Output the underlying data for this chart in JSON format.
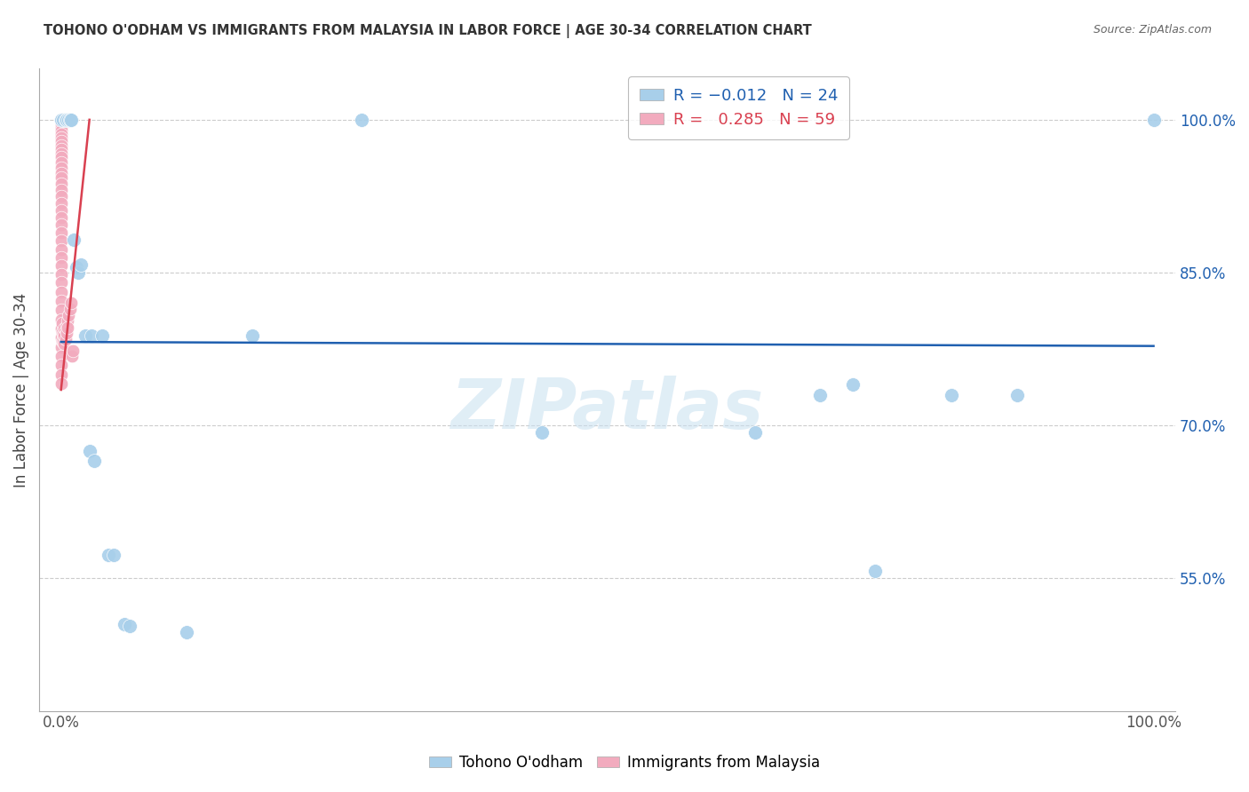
{
  "title": "TOHONO O'ODHAM VS IMMIGRANTS FROM MALAYSIA IN LABOR FORCE | AGE 30-34 CORRELATION CHART",
  "source": "Source: ZipAtlas.com",
  "ylabel": "In Labor Force | Age 30-34",
  "xlim": [
    -0.02,
    1.02
  ],
  "ylim": [
    0.42,
    1.05
  ],
  "yticks": [
    0.55,
    0.7,
    0.85,
    1.0
  ],
  "ytick_labels": [
    "55.0%",
    "70.0%",
    "85.0%",
    "100.0%"
  ],
  "blue_color": "#A8CFEA",
  "pink_color": "#F2ABBE",
  "trend_blue_color": "#2060B0",
  "trend_pink_color": "#D94050",
  "blue_trend_y_start": 0.782,
  "blue_trend_y_end": 0.778,
  "pink_trend_x_start": 0.0,
  "pink_trend_y_start": 0.735,
  "pink_trend_x_end": 0.026,
  "pink_trend_y_end": 1.0,
  "watermark": "ZIPatlas",
  "blue_points": [
    [
      0.0,
      1.0
    ],
    [
      0.002,
      1.0
    ],
    [
      0.004,
      1.0
    ],
    [
      0.005,
      1.0
    ],
    [
      0.007,
      1.0
    ],
    [
      0.008,
      1.0
    ],
    [
      0.009,
      1.0
    ],
    [
      0.012,
      0.882
    ],
    [
      0.014,
      0.855
    ],
    [
      0.016,
      0.85
    ],
    [
      0.018,
      0.858
    ],
    [
      0.022,
      0.788
    ],
    [
      0.028,
      0.788
    ],
    [
      0.026,
      0.675
    ],
    [
      0.03,
      0.665
    ],
    [
      0.038,
      0.788
    ],
    [
      0.043,
      0.573
    ],
    [
      0.048,
      0.573
    ],
    [
      0.058,
      0.505
    ],
    [
      0.063,
      0.503
    ],
    [
      0.115,
      0.497
    ],
    [
      0.175,
      0.788
    ],
    [
      0.275,
      1.0
    ],
    [
      0.44,
      0.693
    ],
    [
      0.635,
      0.693
    ],
    [
      0.695,
      0.73
    ],
    [
      0.725,
      0.74
    ],
    [
      0.745,
      0.557
    ],
    [
      0.815,
      0.73
    ],
    [
      0.875,
      0.73
    ],
    [
      1.0,
      1.0
    ]
  ],
  "pink_points": [
    [
      0.0,
      1.0
    ],
    [
      0.0,
      0.998
    ],
    [
      0.0,
      0.995
    ],
    [
      0.0,
      0.992
    ],
    [
      0.0,
      0.989
    ],
    [
      0.0,
      0.986
    ],
    [
      0.0,
      0.982
    ],
    [
      0.0,
      0.979
    ],
    [
      0.0,
      0.975
    ],
    [
      0.0,
      0.971
    ],
    [
      0.0,
      0.967
    ],
    [
      0.0,
      0.963
    ],
    [
      0.0,
      0.958
    ],
    [
      0.0,
      0.953
    ],
    [
      0.0,
      0.948
    ],
    [
      0.0,
      0.943
    ],
    [
      0.0,
      0.937
    ],
    [
      0.0,
      0.931
    ],
    [
      0.0,
      0.925
    ],
    [
      0.0,
      0.918
    ],
    [
      0.0,
      0.911
    ],
    [
      0.0,
      0.904
    ],
    [
      0.0,
      0.897
    ],
    [
      0.0,
      0.889
    ],
    [
      0.0,
      0.881
    ],
    [
      0.0,
      0.873
    ],
    [
      0.0,
      0.865
    ],
    [
      0.0,
      0.857
    ],
    [
      0.0,
      0.848
    ],
    [
      0.0,
      0.84
    ],
    [
      0.0,
      0.831
    ],
    [
      0.0,
      0.822
    ],
    [
      0.0,
      0.813
    ],
    [
      0.0,
      0.804
    ],
    [
      0.0,
      0.795
    ],
    [
      0.0,
      0.786
    ],
    [
      0.0,
      0.777
    ],
    [
      0.0,
      0.768
    ],
    [
      0.0,
      0.759
    ],
    [
      0.0,
      0.75
    ],
    [
      0.0,
      0.741
    ],
    [
      0.001,
      0.8
    ],
    [
      0.001,
      0.792
    ],
    [
      0.001,
      0.783
    ],
    [
      0.002,
      0.79
    ],
    [
      0.002,
      0.782
    ],
    [
      0.003,
      0.795
    ],
    [
      0.003,
      0.788
    ],
    [
      0.003,
      0.78
    ],
    [
      0.004,
      0.793
    ],
    [
      0.004,
      0.785
    ],
    [
      0.005,
      0.798
    ],
    [
      0.005,
      0.791
    ],
    [
      0.006,
      0.803
    ],
    [
      0.006,
      0.796
    ],
    [
      0.007,
      0.808
    ],
    [
      0.008,
      0.814
    ],
    [
      0.009,
      0.82
    ],
    [
      0.01,
      0.768
    ],
    [
      0.011,
      0.773
    ]
  ]
}
